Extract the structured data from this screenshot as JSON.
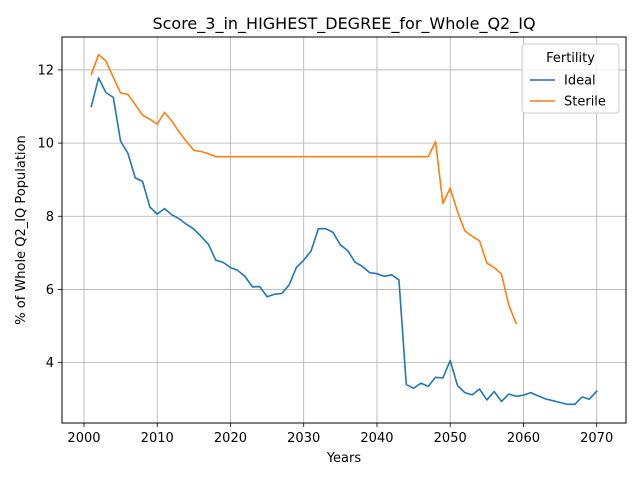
{
  "chart_data": {
    "type": "line",
    "title": "Score_3_in_HIGHEST_DEGREE_for_Whole_Q2_IQ",
    "xlabel": "Years",
    "ylabel": "% of Whole Q2_IQ Population",
    "xlim": [
      1997,
      2074
    ],
    "ylim": [
      2.35,
      12.9
    ],
    "x_ticks": [
      2000,
      2010,
      2020,
      2030,
      2040,
      2050,
      2060,
      2070
    ],
    "y_ticks": [
      4,
      6,
      8,
      10,
      12
    ],
    "grid": true,
    "legend": {
      "title": "Fertility",
      "position": "top-right"
    },
    "series": [
      {
        "name": "Ideal",
        "color": "#1f77b4",
        "x": [
          2001,
          2002,
          2003,
          2004,
          2005,
          2006,
          2007,
          2008,
          2009,
          2010,
          2011,
          2012,
          2013,
          2014,
          2015,
          2016,
          2017,
          2018,
          2019,
          2020,
          2021,
          2022,
          2023,
          2024,
          2025,
          2026,
          2027,
          2028,
          2029,
          2030,
          2031,
          2032,
          2033,
          2034,
          2035,
          2036,
          2037,
          2038,
          2039,
          2040,
          2041,
          2042,
          2043,
          2044,
          2045,
          2046,
          2047,
          2048,
          2049,
          2050,
          2051,
          2052,
          2053,
          2054,
          2055,
          2056,
          2057,
          2058,
          2059,
          2060,
          2061,
          2062,
          2063,
          2064,
          2065,
          2066,
          2067,
          2068,
          2069,
          2070
        ],
        "values": [
          11.0,
          11.78,
          11.38,
          11.25,
          10.05,
          9.72,
          9.05,
          8.95,
          8.25,
          8.06,
          8.21,
          8.04,
          7.93,
          7.78,
          7.65,
          7.45,
          7.23,
          6.8,
          6.74,
          6.6,
          6.52,
          6.35,
          6.07,
          6.08,
          5.8,
          5.87,
          5.89,
          6.12,
          6.6,
          6.8,
          7.05,
          7.66,
          7.66,
          7.56,
          7.22,
          7.06,
          6.75,
          6.63,
          6.46,
          6.43,
          6.36,
          6.4,
          6.26,
          3.4,
          3.3,
          3.44,
          3.35,
          3.6,
          3.58,
          4.06,
          3.37,
          3.18,
          3.12,
          3.28,
          2.98,
          3.21,
          2.94,
          3.14,
          3.08,
          3.11,
          3.18,
          3.09,
          3.01,
          2.96,
          2.91,
          2.86,
          2.86,
          3.06,
          3.0,
          3.22
        ]
      },
      {
        "name": "Sterile",
        "color": "#ff7f0e",
        "x": [
          2001,
          2002,
          2003,
          2004,
          2005,
          2006,
          2007,
          2008,
          2009,
          2010,
          2011,
          2012,
          2013,
          2014,
          2015,
          2016,
          2017,
          2018,
          2019,
          2020,
          2021,
          2022,
          2023,
          2024,
          2025,
          2026,
          2027,
          2028,
          2029,
          2030,
          2031,
          2032,
          2033,
          2034,
          2035,
          2036,
          2037,
          2038,
          2039,
          2040,
          2041,
          2042,
          2043,
          2044,
          2045,
          2046,
          2047,
          2048,
          2049,
          2050,
          2051,
          2052,
          2053,
          2054,
          2055,
          2056,
          2057,
          2058,
          2059
        ],
        "values": [
          11.88,
          12.42,
          12.24,
          11.8,
          11.37,
          11.33,
          11.05,
          10.76,
          10.65,
          10.52,
          10.84,
          10.6,
          10.3,
          10.04,
          9.8,
          9.77,
          9.71,
          9.63,
          9.63,
          9.63,
          9.63,
          9.63,
          9.63,
          9.63,
          9.63,
          9.63,
          9.63,
          9.63,
          9.63,
          9.63,
          9.63,
          9.63,
          9.63,
          9.63,
          9.63,
          9.63,
          9.63,
          9.63,
          9.63,
          9.63,
          9.63,
          9.63,
          9.63,
          9.63,
          9.63,
          9.63,
          9.63,
          10.04,
          8.35,
          8.77,
          8.12,
          7.6,
          7.45,
          7.33,
          6.72,
          6.6,
          6.42,
          5.57,
          5.07
        ]
      }
    ]
  }
}
